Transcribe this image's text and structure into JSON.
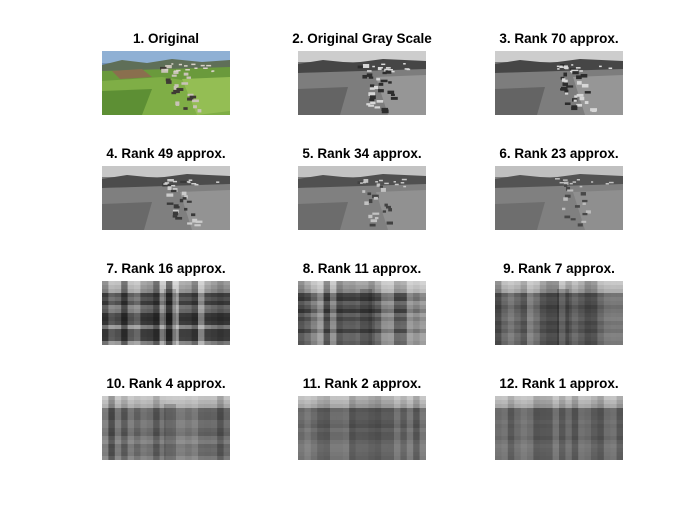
{
  "figure": {
    "background": "#ffffff",
    "panels": [
      {
        "title": "1. Original",
        "image": "aerial landscape photo (color)",
        "mode": "color",
        "rank": null
      },
      {
        "title": "2. Original Gray Scale",
        "image": "aerial landscape photo (grayscale)",
        "mode": "gray",
        "rank": null
      },
      {
        "title": "3. Rank 70 approx.",
        "image": "grayscale low-rank approximation",
        "mode": "gray",
        "rank": 70
      },
      {
        "title": "4. Rank 49 approx.",
        "image": "grayscale low-rank approximation",
        "mode": "gray",
        "rank": 49
      },
      {
        "title": "5. Rank 34 approx.",
        "image": "grayscale low-rank approximation",
        "mode": "gray",
        "rank": 34
      },
      {
        "title": "6. Rank 23 approx.",
        "image": "grayscale low-rank approximation",
        "mode": "gray",
        "rank": 23
      },
      {
        "title": "7. Rank 16 approx.",
        "image": "grayscale low-rank approximation",
        "mode": "gray",
        "rank": 16
      },
      {
        "title": "8. Rank 11 approx.",
        "image": "grayscale low-rank approximation",
        "mode": "gray",
        "rank": 11
      },
      {
        "title": "9. Rank 7 approx.",
        "image": "grayscale low-rank approximation",
        "mode": "gray",
        "rank": 7
      },
      {
        "title": "10. Rank 4 approx.",
        "image": "grayscale low-rank approximation",
        "mode": "gray",
        "rank": 4
      },
      {
        "title": "11. Rank 2 approx.",
        "image": "grayscale low-rank approximation",
        "mode": "gray",
        "rank": 2
      },
      {
        "title": "12. Rank 1 approx.",
        "image": "grayscale low-rank approximation",
        "mode": "gray",
        "rank": 1
      }
    ]
  }
}
